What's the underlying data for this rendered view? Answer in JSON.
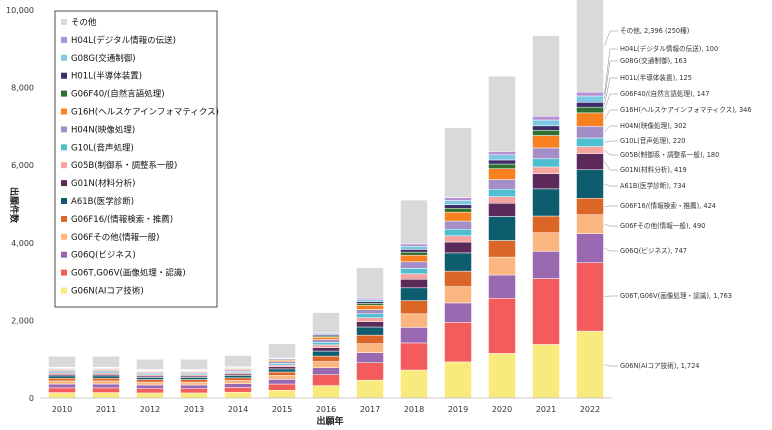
{
  "chart_data": {
    "type": "bar",
    "stacked": true,
    "xlabel": "出願年",
    "ylabel": "出願件数",
    "ylim": [
      0,
      10000
    ],
    "yticks": [
      "0",
      "2,000",
      "4,000",
      "6,000",
      "8,000",
      "10,000"
    ],
    "ytick_values": [
      0,
      2000,
      4000,
      6000,
      8000,
      10000
    ],
    "grid": false,
    "legend_position": "top-left",
    "categories": [
      "2010",
      "2011",
      "2012",
      "2013",
      "2014",
      "2015",
      "2016",
      "2017",
      "2018",
      "2019",
      "2020",
      "2021",
      "2022"
    ],
    "series": [
      {
        "name": "G06N(AIコア技術)",
        "color": "#f9ea7e",
        "values": [
          140,
          140,
          130,
          130,
          150,
          200,
          320,
          460,
          720,
          930,
          1150,
          1380,
          1724
        ]
      },
      {
        "name": "G06T,G06V(画像処理・認識)",
        "color": "#f45b5b",
        "values": [
          120,
          120,
          110,
          110,
          120,
          160,
          280,
          450,
          700,
          1020,
          1420,
          1700,
          1763
        ]
      },
      {
        "name": "G06Q(ビジネス)",
        "color": "#9a68b0",
        "values": [
          100,
          100,
          95,
          95,
          100,
          120,
          180,
          260,
          400,
          500,
          600,
          700,
          747
        ]
      },
      {
        "name": "G06Fその他(情報一般)",
        "color": "#fbb682",
        "values": [
          80,
          80,
          75,
          75,
          80,
          100,
          160,
          230,
          350,
          420,
          460,
          480,
          490
        ]
      },
      {
        "name": "G06F16/(情報検索・推薦)",
        "color": "#dc6528",
        "values": [
          70,
          70,
          65,
          65,
          70,
          90,
          140,
          220,
          340,
          400,
          430,
          430,
          424
        ]
      },
      {
        "name": "A61B(医学診断)",
        "color": "#0d5d6f",
        "values": [
          60,
          60,
          55,
          55,
          60,
          80,
          130,
          210,
          330,
          470,
          620,
          700,
          734
        ]
      },
      {
        "name": "G01N(材料分析)",
        "color": "#5b2a5b",
        "values": [
          40,
          40,
          38,
          38,
          40,
          55,
          90,
          140,
          220,
          280,
          340,
          390,
          419
        ]
      },
      {
        "name": "G05B(制御系・調整系一般)",
        "color": "#f6a4a0",
        "values": [
          35,
          35,
          32,
          32,
          35,
          45,
          70,
          100,
          140,
          160,
          170,
          175,
          180
        ]
      },
      {
        "name": "G10L(音声処理)",
        "color": "#4ebfd0",
        "values": [
          30,
          30,
          28,
          28,
          30,
          40,
          65,
          100,
          140,
          170,
          190,
          210,
          220
        ]
      },
      {
        "name": "H04N(映像処理)",
        "color": "#a48ec7",
        "values": [
          35,
          35,
          32,
          32,
          35,
          45,
          70,
          110,
          170,
          210,
          250,
          280,
          302
        ]
      },
      {
        "name": "G16H(ヘルスケアインフォマティクス)",
        "color": "#f98020",
        "values": [
          25,
          25,
          22,
          22,
          25,
          35,
          60,
          110,
          170,
          230,
          280,
          320,
          346
        ]
      },
      {
        "name": "G06F40/(自然言語処理)",
        "color": "#2f6f2f",
        "values": [
          15,
          15,
          14,
          14,
          15,
          20,
          30,
          50,
          80,
          100,
          120,
          135,
          147
        ]
      },
      {
        "name": "H01L(半導体装置)",
        "color": "#3d2b6b",
        "values": [
          15,
          15,
          14,
          14,
          15,
          20,
          30,
          45,
          70,
          90,
          105,
          115,
          125
        ]
      },
      {
        "name": "G08G(交通制御)",
        "color": "#7ec8e3",
        "values": [
          15,
          15,
          14,
          14,
          15,
          20,
          30,
          50,
          80,
          110,
          135,
          150,
          163
        ]
      },
      {
        "name": "H04L(デジタル情報の伝送)",
        "color": "#b58fd4",
        "values": [
          15,
          15,
          14,
          14,
          15,
          20,
          25,
          40,
          60,
          75,
          85,
          95,
          100
        ]
      },
      {
        "name": "その他",
        "color": "#d9d9d9",
        "values": [
          280,
          280,
          260,
          260,
          290,
          350,
          520,
          780,
          1130,
          1800,
          1940,
          2080,
          2396
        ]
      }
    ],
    "annotations": [
      "その他, 2,396 (250種)",
      "H04L(デジタル情報の伝送), 100",
      "G08G(交通制御), 163",
      "H01L(半導体装置), 125",
      "G06F40/(自然言語処理), 147",
      "G16H(ヘルスケアインフォマティクス), 346",
      "H04N(映像処理), 302",
      "G10L(音声処理), 220",
      "G05B(制御系・調整系一般), 180",
      "G01N(材料分析), 419",
      "A61B(医学診断), 734",
      "G06F16/(情報検索・推薦), 424",
      "G06Fその他(情報一般), 490",
      "G06Q(ビジネス), 747",
      "G06T,G06V(画像処理・認識), 1,763",
      "G06N(AIコア技術), 1,724"
    ],
    "legend_order": [
      "その他",
      "H04L(デジタル情報の伝送)",
      "G08G(交通制御)",
      "H01L(半導体装置)",
      "G06F40/(自然言語処理)",
      "G16H(ヘルスケアインフォマティクス)",
      "H04N(映像処理)",
      "G10L(音声処理)",
      "G05B(制御系・調整系一般)",
      "G01N(材料分析)",
      "A61B(医学診断)",
      "G06F16/(情報検索・推薦)",
      "G06Fその他(情報一般)",
      "G06Q(ビジネス)",
      "G06T,G06V(画像処理・認識)",
      "G06N(AIコア技術)"
    ]
  }
}
